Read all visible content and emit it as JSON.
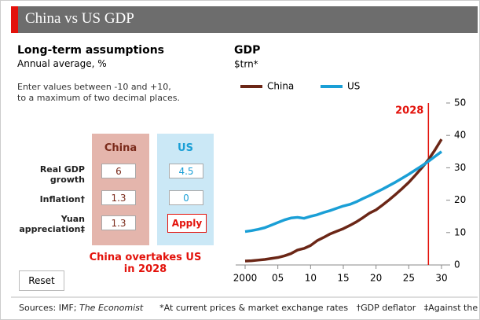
{
  "header": {
    "title": "China vs US GDP"
  },
  "assumptions": {
    "title": "Long-term assumptions",
    "subtitle": "Annual average, %",
    "instructions": [
      "Enter values between -10 and +10,",
      "to a maximum of two decimal places."
    ],
    "columns": [
      "China",
      "US"
    ],
    "rows": [
      {
        "label": [
          "Real GDP",
          "growth"
        ],
        "china": "6",
        "us": "4.5"
      },
      {
        "label": [
          "Inflation†"
        ],
        "china": "1.3",
        "us": "0"
      },
      {
        "label": [
          "Yuan",
          "appreciation‡"
        ],
        "china": "1.3"
      }
    ],
    "apply": "Apply",
    "result": [
      "China overtakes US",
      "in 2028"
    ],
    "reset": "Reset"
  },
  "chart_data": {
    "type": "line",
    "title": "GDP",
    "subtitle": "$trn*",
    "x": [
      2000,
      2001,
      2002,
      2003,
      2004,
      2005,
      2006,
      2007,
      2008,
      2009,
      2010,
      2011,
      2012,
      2013,
      2014,
      2015,
      2016,
      2017,
      2018,
      2019,
      2020,
      2021,
      2022,
      2023,
      2024,
      2025,
      2026,
      2027,
      2028,
      2029,
      2030
    ],
    "series": [
      {
        "name": "China",
        "color": "#6b2616",
        "values": [
          1.2,
          1.3,
          1.5,
          1.7,
          2.0,
          2.3,
          2.8,
          3.5,
          4.6,
          5.1,
          6.0,
          7.5,
          8.5,
          9.6,
          10.4,
          11.2,
          12.2,
          13.3,
          14.6,
          16.0,
          17.0,
          18.5,
          20.1,
          21.8,
          23.6,
          25.5,
          27.7,
          30.0,
          32.5,
          35.5,
          38.8
        ]
      },
      {
        "name": "US",
        "color": "#1a9fd6",
        "values": [
          10.3,
          10.6,
          11.0,
          11.5,
          12.3,
          13.1,
          13.9,
          14.5,
          14.7,
          14.4,
          15.0,
          15.5,
          16.2,
          16.8,
          17.5,
          18.2,
          18.7,
          19.5,
          20.5,
          21.4,
          22.4,
          23.4,
          24.5,
          25.6,
          26.8,
          28.0,
          29.3,
          30.6,
          32.0,
          33.5,
          35.0
        ]
      }
    ],
    "xlim": [
      2000,
      2030
    ],
    "xticks": [
      2000,
      {
        "value": 2005,
        "label": "05"
      },
      {
        "value": 2010,
        "label": "10"
      },
      {
        "value": 2015,
        "label": "15"
      },
      {
        "value": 2020,
        "label": "20"
      },
      {
        "value": 2025,
        "label": "25"
      },
      {
        "value": 2030,
        "label": "30"
      }
    ],
    "ylim": [
      0,
      50
    ],
    "yticks": [
      0,
      10,
      20,
      30,
      40,
      50
    ],
    "marker_x": 2028,
    "marker_color": "#e3120b"
  },
  "footer": {
    "sources": "Sources: IMF; ",
    "publication": "The Economist",
    "notes": "*At current prices & market exchange rates   †GDP deflator   ‡Against the dollar"
  }
}
